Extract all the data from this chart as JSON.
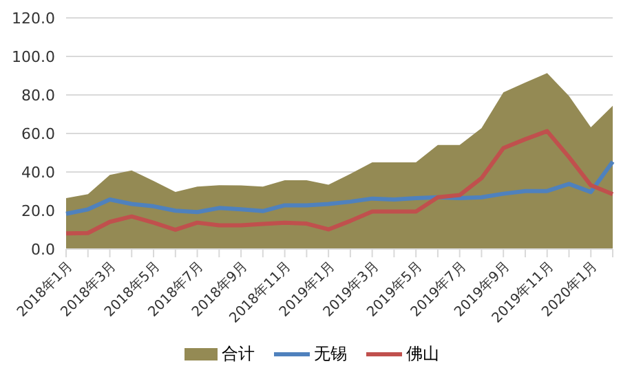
{
  "chart_data": {
    "type": "line",
    "categories": [
      "2018年1月",
      null,
      "2018年3月",
      null,
      "2018年5月",
      null,
      "2018年7月",
      null,
      "2018年9月",
      null,
      "2018年11月",
      null,
      "2019年1月",
      null,
      "2019年3月",
      null,
      "2019年5月",
      null,
      "2019年7月",
      null,
      "2019年9月",
      null,
      "2019年11月",
      null,
      "2020年1月",
      null
    ],
    "series": [
      {
        "name": "合计",
        "type": "area",
        "color": "#948a54",
        "values": [
          26.4,
          28.5,
          38.5,
          40.8,
          35.4,
          29.6,
          32.4,
          33.1,
          33,
          32.4,
          35.7,
          35.7,
          33.4,
          39,
          45,
          45,
          45,
          54,
          54,
          62.8,
          81.3,
          86.4,
          91.3,
          79.5,
          63.2,
          74.4
        ]
      },
      {
        "name": "无锡",
        "color": "#4f81bd",
        "values": [
          18.3,
          20.6,
          25.7,
          23.4,
          22.2,
          19.9,
          19.2,
          21.3,
          20.6,
          19.7,
          22.7,
          22.7,
          23.4,
          24.6,
          26.2,
          25.7,
          26.4,
          26.9,
          26.4,
          26.9,
          28.7,
          30.1,
          30.1,
          33.8,
          29.6,
          45.4
        ]
      },
      {
        "name": "佛山",
        "color": "#c0504d",
        "values": [
          8.1,
          8.3,
          14.1,
          16.9,
          13.7,
          10,
          13.7,
          12.3,
          12.3,
          13,
          13.7,
          13.2,
          10.2,
          14.6,
          19.5,
          19.5,
          19.5,
          26.9,
          28,
          36.8,
          52.4,
          57,
          61.2,
          47.7,
          33.1,
          28.5
        ]
      }
    ],
    "ylim": [
      0,
      120
    ],
    "yticks": [
      {
        "value": 0,
        "label": "0.0"
      },
      {
        "value": 20,
        "label": "20.0"
      },
      {
        "value": 40,
        "label": "40.0"
      },
      {
        "value": 60,
        "label": "60.0"
      },
      {
        "value": 80,
        "label": "80.0"
      },
      {
        "value": 100,
        "label": "100.0"
      },
      {
        "value": 120,
        "label": "120.0"
      }
    ],
    "grid": "y",
    "legend": "bottom",
    "marker": "none",
    "line_style": "solid"
  }
}
